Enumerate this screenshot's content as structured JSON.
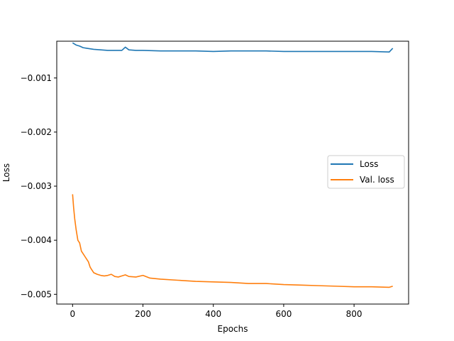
{
  "chart_data": {
    "type": "line",
    "title": "",
    "xlabel": "Epochs",
    "ylabel": "Loss",
    "xlim": [
      -45,
      955
    ],
    "ylim": [
      -0.00518,
      -0.00032
    ],
    "xticks": [
      0,
      200,
      400,
      600,
      800
    ],
    "xtick_labels": [
      "0",
      "200",
      "400",
      "600",
      "800"
    ],
    "yticks": [
      -0.005,
      -0.004,
      -0.003,
      -0.002,
      -0.001
    ],
    "ytick_labels": [
      "−0.005",
      "−0.004",
      "−0.003",
      "−0.002",
      "−0.001"
    ],
    "grid": false,
    "legend_position": "center-right",
    "series": [
      {
        "name": "Loss",
        "color": "#1f77b4",
        "x": [
          0,
          5,
          10,
          20,
          30,
          40,
          50,
          60,
          80,
          100,
          120,
          140,
          150,
          160,
          180,
          200,
          250,
          300,
          350,
          400,
          450,
          500,
          550,
          600,
          650,
          700,
          750,
          800,
          850,
          900,
          910
        ],
        "y": [
          -0.00035,
          -0.00037,
          -0.00039,
          -0.00041,
          -0.00044,
          -0.00045,
          -0.00046,
          -0.00047,
          -0.00048,
          -0.00049,
          -0.00049,
          -0.00049,
          -0.00043,
          -0.00048,
          -0.00049,
          -0.00049,
          -0.0005,
          -0.0005,
          -0.0005,
          -0.00051,
          -0.0005,
          -0.0005,
          -0.0005,
          -0.00051,
          -0.00051,
          -0.00051,
          -0.00051,
          -0.00051,
          -0.00051,
          -0.00052,
          -0.00045
        ]
      },
      {
        "name": "Val. loss",
        "color": "#ff7f0e",
        "x": [
          0,
          3,
          6,
          10,
          15,
          20,
          25,
          30,
          35,
          40,
          45,
          50,
          55,
          60,
          70,
          80,
          90,
          100,
          110,
          120,
          130,
          140,
          150,
          160,
          180,
          200,
          220,
          250,
          300,
          350,
          400,
          450,
          500,
          550,
          600,
          650,
          700,
          750,
          800,
          850,
          900,
          910
        ],
        "y": [
          -0.00315,
          -0.0034,
          -0.0036,
          -0.0038,
          -0.004,
          -0.00405,
          -0.0042,
          -0.00425,
          -0.0043,
          -0.00435,
          -0.0044,
          -0.0045,
          -0.00455,
          -0.0046,
          -0.00463,
          -0.00465,
          -0.00466,
          -0.00465,
          -0.00463,
          -0.00467,
          -0.00468,
          -0.00466,
          -0.00464,
          -0.00467,
          -0.00468,
          -0.00465,
          -0.0047,
          -0.00472,
          -0.00474,
          -0.00476,
          -0.00477,
          -0.00478,
          -0.0048,
          -0.0048,
          -0.00482,
          -0.00483,
          -0.00484,
          -0.00485,
          -0.00486,
          -0.00486,
          -0.00487,
          -0.00485
        ]
      }
    ]
  }
}
